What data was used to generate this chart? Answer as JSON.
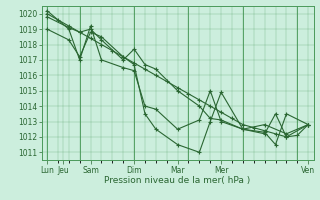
{
  "xlabel": "Pression niveau de la mer( hPa )",
  "bg_color": "#cceedd",
  "grid_color": "#4a9a5a",
  "line_color": "#2a6632",
  "ylim": [
    1010.5,
    1020.5
  ],
  "yticks": [
    1011,
    1012,
    1013,
    1014,
    1015,
    1016,
    1017,
    1018,
    1019,
    1020
  ],
  "day_positions": [
    0,
    1.5,
    4,
    8,
    12,
    16,
    24
  ],
  "day_labels": [
    "Lun",
    "Jeu",
    "Sam",
    "Dim",
    "Mar",
    "Mer",
    "Ven"
  ],
  "xlim": [
    -0.5,
    24.5
  ],
  "vlines": [
    0,
    3,
    8,
    13,
    18,
    23
  ],
  "line1_x": [
    0,
    1,
    2,
    3,
    4,
    5,
    6,
    7,
    8,
    9,
    10,
    11,
    12,
    13,
    14,
    15,
    16,
    17,
    18,
    19,
    20,
    21,
    22,
    23,
    24
  ],
  "line1": [
    1020.0,
    1019.6,
    1019.2,
    1018.8,
    1018.4,
    1018.0,
    1017.6,
    1017.2,
    1016.8,
    1016.4,
    1016.0,
    1015.6,
    1015.2,
    1014.8,
    1014.4,
    1014.0,
    1013.6,
    1013.2,
    1012.8,
    1012.6,
    1012.4,
    1012.2,
    1012.0,
    1012.1,
    1012.8
  ],
  "line2_x": [
    0,
    2,
    3,
    4,
    5,
    7,
    8,
    9,
    10,
    12,
    14,
    15,
    16,
    18,
    20,
    22,
    24
  ],
  "line2": [
    1019.8,
    1019.1,
    1018.8,
    1019.0,
    1018.3,
    1017.0,
    1017.7,
    1016.7,
    1016.4,
    1015.0,
    1014.0,
    1013.2,
    1013.1,
    1012.5,
    1012.8,
    1012.2,
    1012.8
  ],
  "line3_x": [
    0,
    2,
    3,
    4,
    5,
    7,
    8,
    9,
    10,
    12,
    14,
    15,
    16,
    18,
    20,
    21,
    22,
    24
  ],
  "line3": [
    1019.0,
    1018.3,
    1017.2,
    1018.8,
    1018.5,
    1017.2,
    1016.7,
    1013.5,
    1012.5,
    1011.5,
    1011.0,
    1013.0,
    1014.9,
    1012.5,
    1012.3,
    1011.5,
    1013.5,
    1012.8
  ],
  "line4_x": [
    0,
    2,
    3,
    4,
    5,
    7,
    8,
    9,
    10,
    12,
    14,
    15,
    16,
    18,
    20,
    21,
    22,
    24
  ],
  "line4": [
    1020.2,
    1019.0,
    1017.0,
    1019.2,
    1017.0,
    1016.5,
    1016.3,
    1014.0,
    1013.8,
    1012.5,
    1013.1,
    1015.0,
    1013.0,
    1012.5,
    1012.2,
    1013.5,
    1012.0,
    1012.8
  ]
}
